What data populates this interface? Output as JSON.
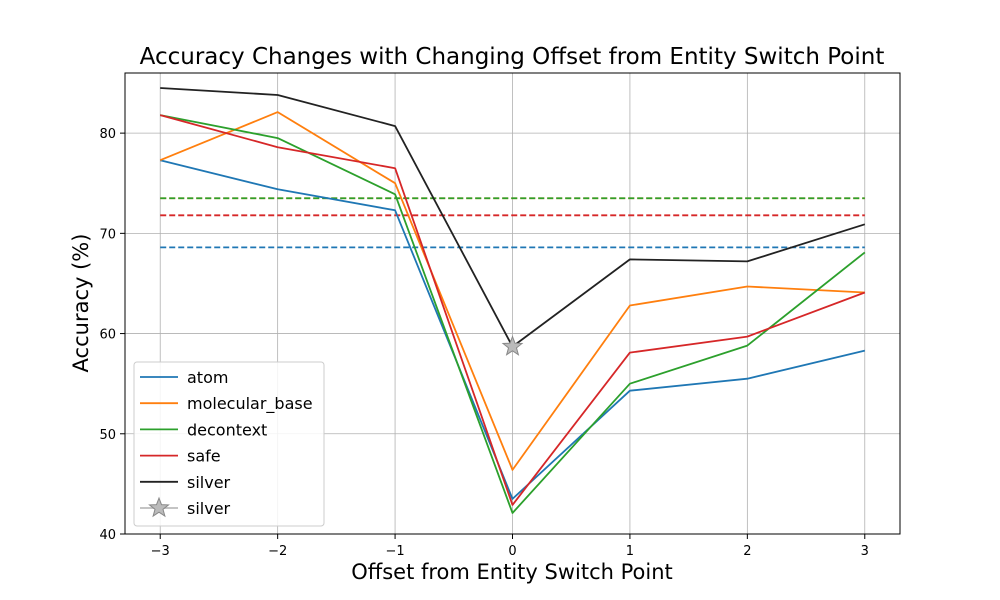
{
  "chart_data": {
    "type": "line",
    "title": "Accuracy Changes with Changing Offset from Entity Switch Point",
    "xlabel": "Offset from Entity Switch Point",
    "ylabel": "Accuracy (%)",
    "x": [
      -3,
      -2,
      -1,
      0,
      1,
      2,
      3
    ],
    "xticks": [
      -3,
      -2,
      -1,
      0,
      1,
      2,
      3
    ],
    "xtick_labels": [
      "−3",
      "−2",
      "−1",
      "0",
      "1",
      "2",
      "3"
    ],
    "yticks": [
      40,
      50,
      60,
      70,
      80
    ],
    "ytick_labels": [
      "40",
      "50",
      "60",
      "70",
      "80"
    ],
    "xlim": [
      -3.3,
      3.3
    ],
    "ylim": [
      40,
      86
    ],
    "grid": true,
    "legend_position": "lower-left",
    "series": [
      {
        "name": "atom",
        "color": "#1f77b4",
        "values": [
          77.3,
          74.4,
          72.3,
          43.5,
          54.3,
          55.5,
          58.3
        ],
        "baseline": 68.6
      },
      {
        "name": "molecular_base",
        "color": "#ff7f0e",
        "values": [
          77.3,
          82.1,
          75.0,
          46.4,
          62.8,
          64.7,
          64.1
        ],
        "baseline": 73.5
      },
      {
        "name": "decontext",
        "color": "#2ca02c",
        "values": [
          81.8,
          79.5,
          73.9,
          42.1,
          55.0,
          58.8,
          68.1
        ],
        "baseline": 73.5
      },
      {
        "name": "safe",
        "color": "#d62728",
        "values": [
          81.8,
          78.6,
          76.5,
          42.9,
          58.1,
          59.7,
          64.1
        ],
        "baseline": 71.8
      },
      {
        "name": "silver",
        "color": "#222222",
        "values": [
          84.5,
          83.8,
          80.7,
          58.7,
          67.4,
          67.2,
          70.9
        ],
        "baseline": null
      }
    ],
    "marker_series": {
      "name": "silver",
      "x": 0,
      "y": 58.7,
      "color": "#bbbbbb",
      "shape": "star"
    }
  }
}
